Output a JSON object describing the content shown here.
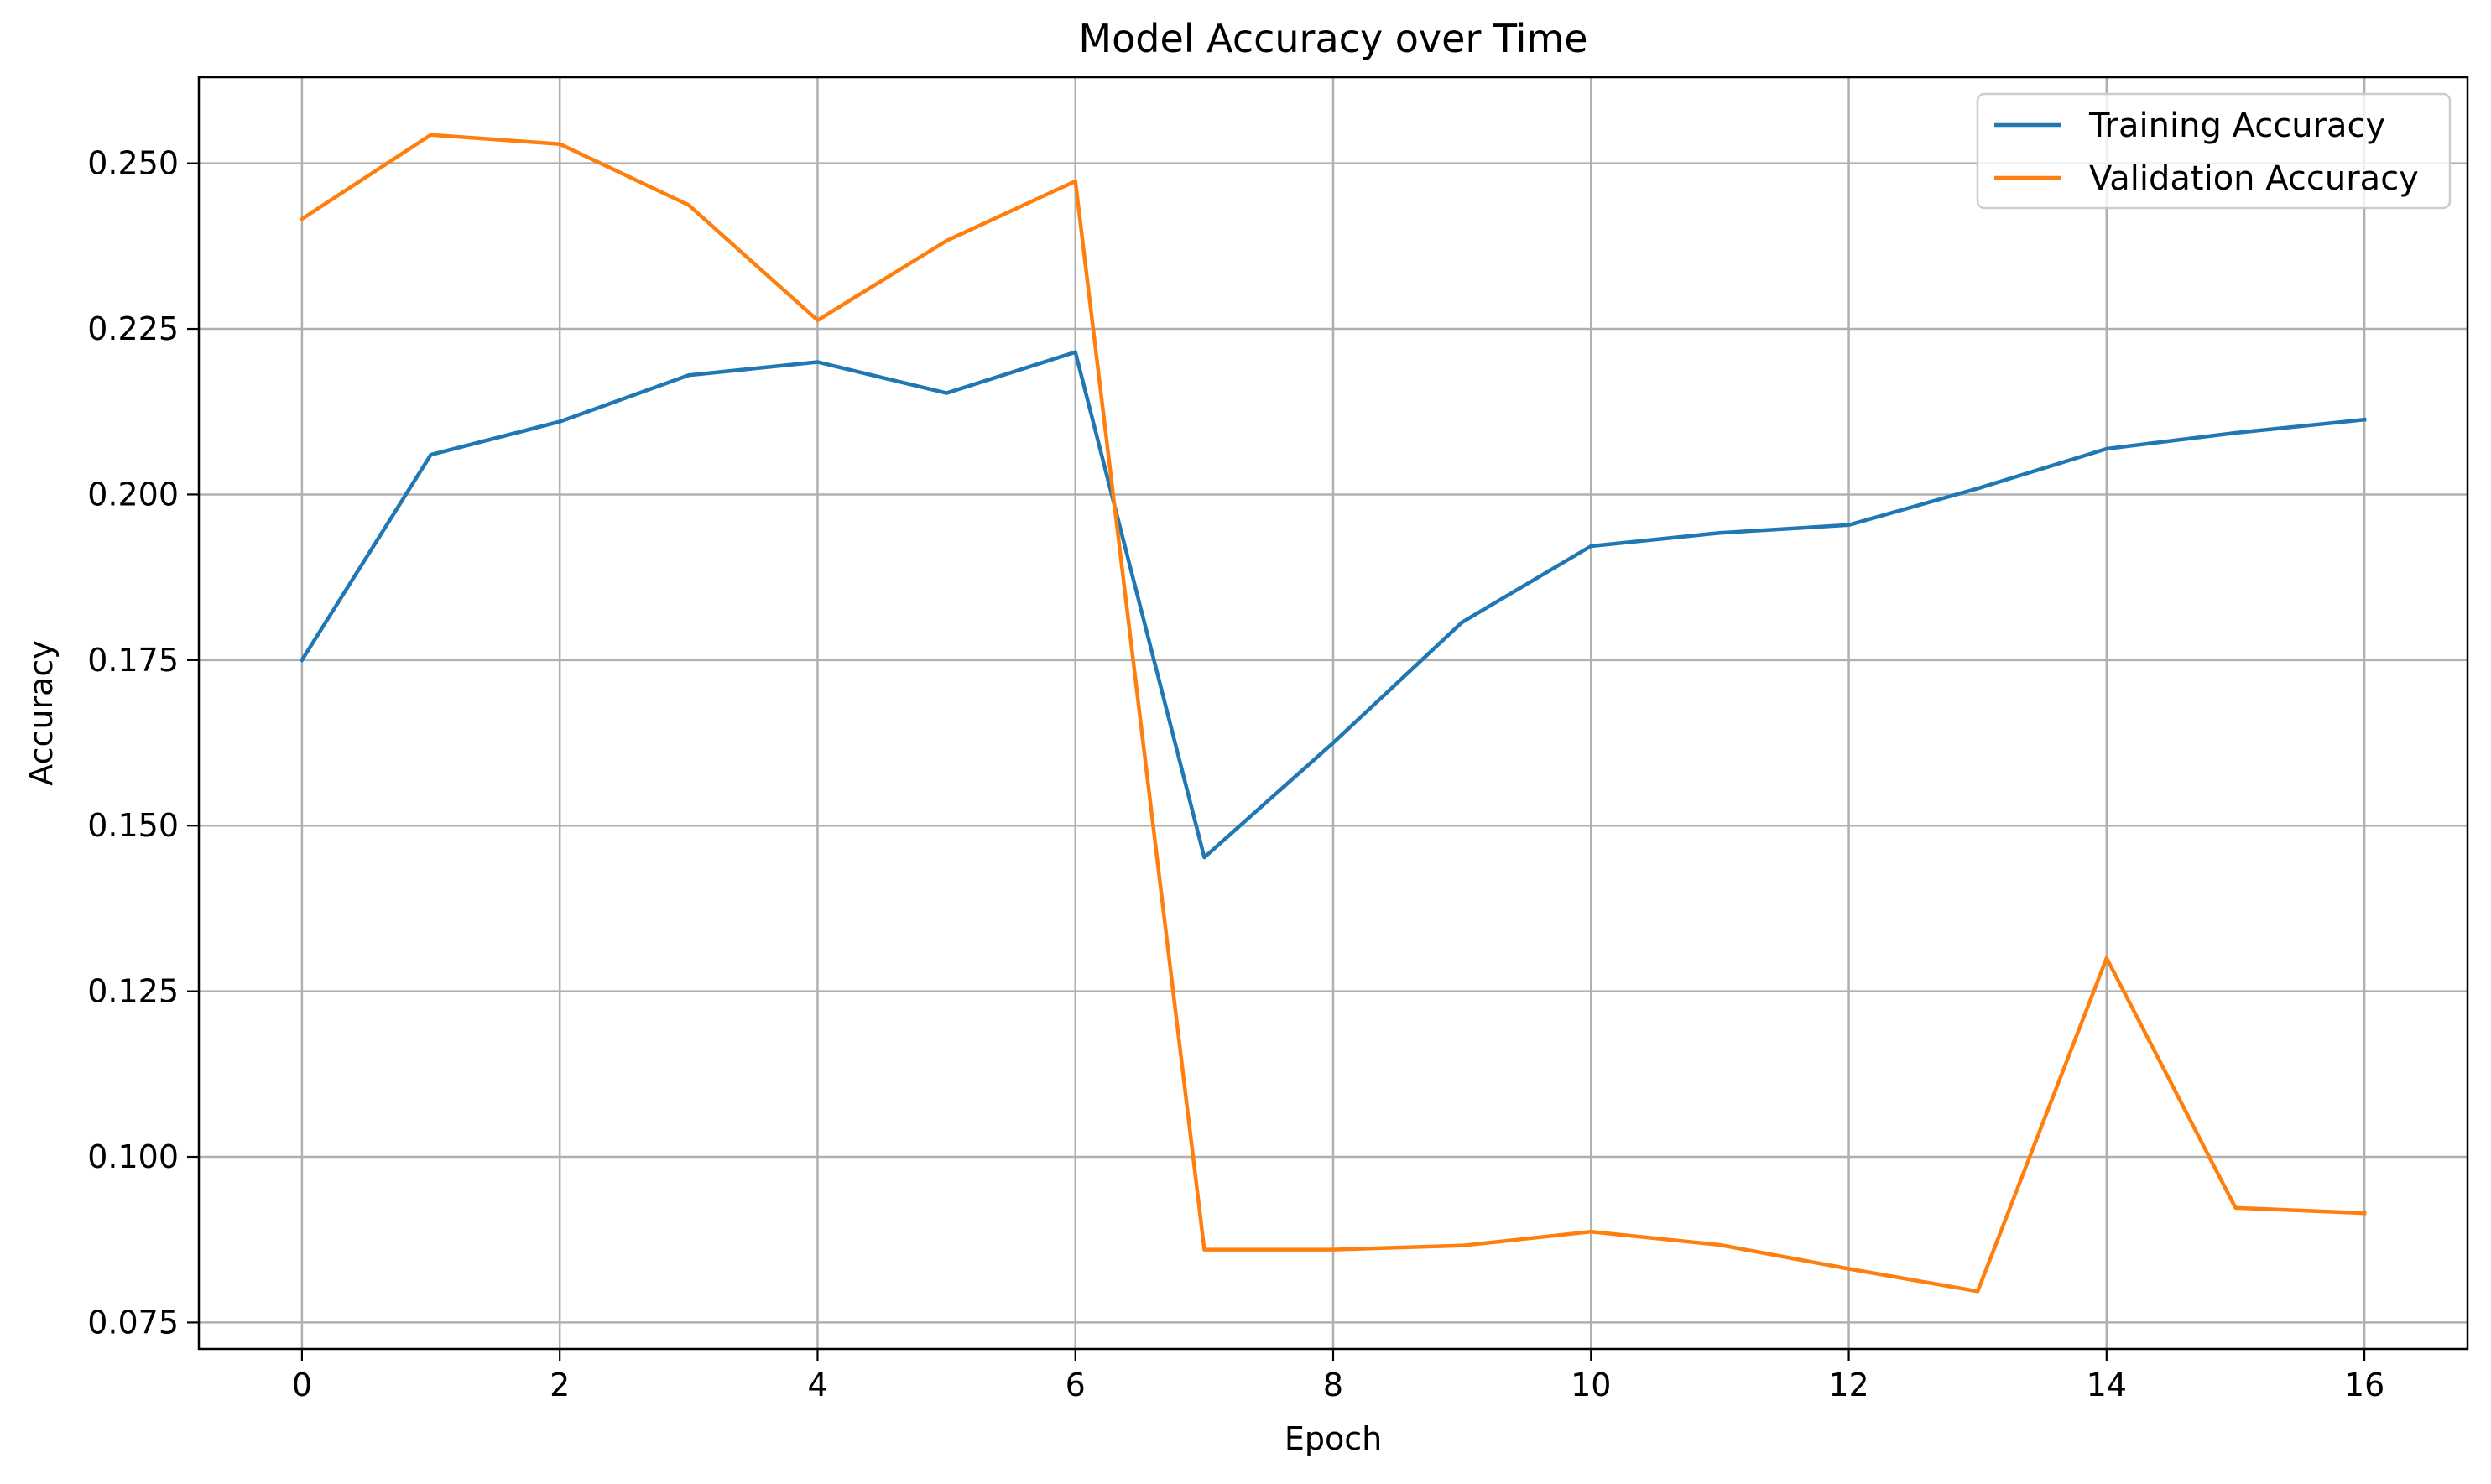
{
  "chart_data": {
    "type": "line",
    "title": "Model Accuracy over Time",
    "xlabel": "Epoch",
    "ylabel": "Accuracy",
    "x": [
      0,
      1,
      2,
      3,
      4,
      5,
      6,
      7,
      8,
      9,
      10,
      11,
      12,
      13,
      14,
      15,
      16
    ],
    "xlim": [
      -0.8,
      16.8
    ],
    "ylim": [
      0.071,
      0.263
    ],
    "xticks": [
      0,
      2,
      4,
      6,
      8,
      10,
      12,
      14,
      16
    ],
    "yticks": [
      0.075,
      0.1,
      0.125,
      0.15,
      0.175,
      0.2,
      0.225,
      0.25
    ],
    "xtick_labels": [
      "0",
      "2",
      "4",
      "6",
      "8",
      "10",
      "12",
      "14",
      "16"
    ],
    "ytick_labels": [
      "0.075",
      "0.100",
      "0.125",
      "0.150",
      "0.175",
      "0.200",
      "0.225",
      "0.250"
    ],
    "grid": true,
    "legend_position": "top-right",
    "series": [
      {
        "name": "Training Accuracy",
        "color": "#1f77b4",
        "values": [
          0.175,
          0.206,
          0.211,
          0.218,
          0.22,
          0.2153,
          0.2215,
          0.1452,
          0.1625,
          0.1807,
          0.1922,
          0.1942,
          0.1954,
          0.2009,
          0.2069,
          0.2093,
          0.2113
        ]
      },
      {
        "name": "Validation Accuracy",
        "color": "#ff7f0e",
        "values": [
          0.2416,
          0.2543,
          0.2529,
          0.2437,
          0.2263,
          0.2383,
          0.2473,
          0.086,
          0.086,
          0.0866,
          0.0887,
          0.0867,
          0.0831,
          0.0797,
          0.13,
          0.0923,
          0.0915
        ]
      }
    ]
  }
}
